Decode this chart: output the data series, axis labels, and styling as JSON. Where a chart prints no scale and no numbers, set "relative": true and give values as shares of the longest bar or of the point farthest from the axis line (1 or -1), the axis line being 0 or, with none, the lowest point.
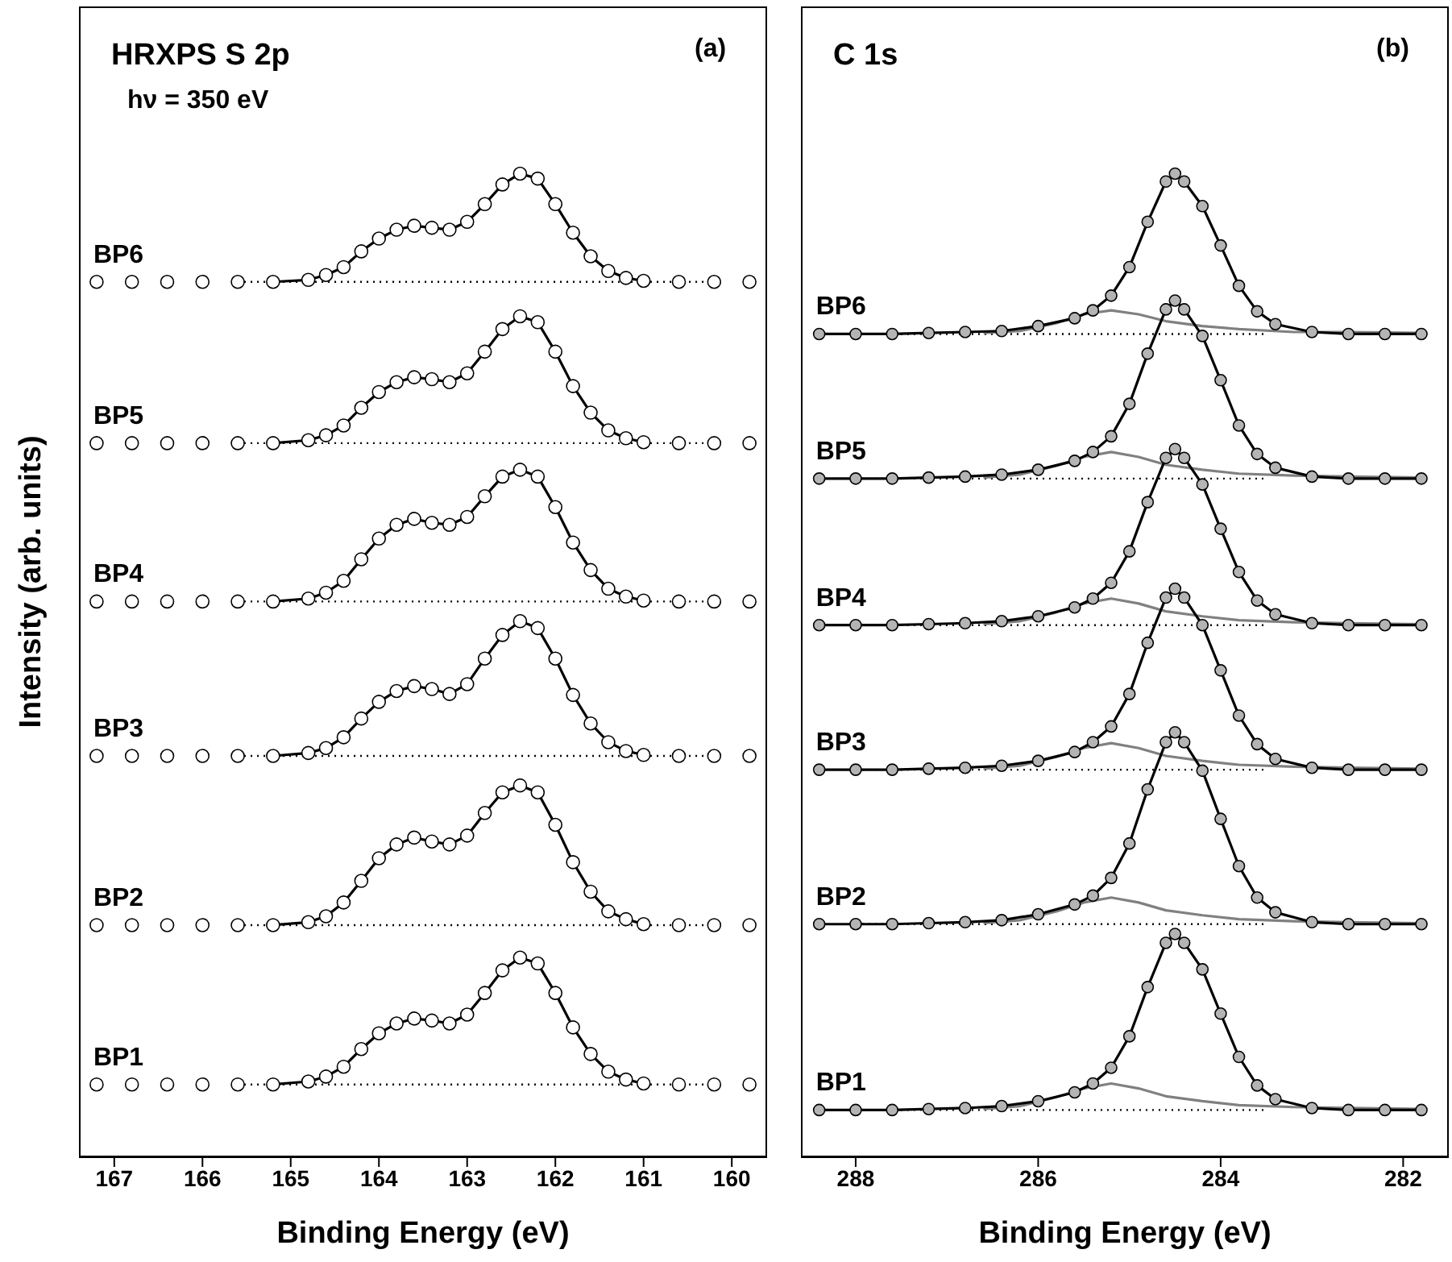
{
  "chart_data": [
    {
      "type": "scatter",
      "title": "(a)",
      "xlabel": "Binding Energy (eV)",
      "ylabel": "Intensity (arb. units)",
      "relative": true,
      "xlim": [
        167.4,
        159.6
      ],
      "xticks": [
        167,
        166,
        165,
        164,
        163,
        162,
        161,
        160
      ],
      "tick_labels": "x",
      "grid": false,
      "legend": false,
      "x": [
        167.2,
        166.8,
        166.4,
        166,
        165.6,
        165.2,
        164.8,
        164.6,
        164.4,
        164.2,
        164,
        163.8,
        163.6,
        163.4,
        163.2,
        163,
        162.8,
        162.6,
        162.4,
        162.2,
        162,
        161.8,
        161.6,
        161.4,
        161.2,
        161,
        160.6,
        160.2,
        159.8
      ],
      "annotations": [
        "HRXPS S 2p",
        "hν = 350 eV"
      ],
      "series": [
        {
          "type": "line",
          "line_style": "dotted",
          "color": "#000000",
          "x": [
            165.6,
            160.2
          ],
          "values": [
            0.89,
            0.89
          ]
        },
        {
          "type": "line",
          "line_style": "dotted",
          "color": "#000000",
          "x": [
            165.6,
            160.2
          ],
          "values": [
            0.726,
            0.726
          ]
        },
        {
          "type": "line",
          "line_style": "dotted",
          "color": "#000000",
          "x": [
            165.6,
            160.2
          ],
          "values": [
            0.565,
            0.565
          ]
        },
        {
          "type": "line",
          "line_style": "dotted",
          "color": "#000000",
          "x": [
            165.6,
            160.2
          ],
          "values": [
            0.408,
            0.408
          ]
        },
        {
          "type": "line",
          "line_style": "dotted",
          "color": "#000000",
          "x": [
            165.6,
            160.2
          ],
          "values": [
            0.236,
            0.236
          ]
        },
        {
          "type": "line",
          "line_style": "dotted",
          "color": "#000000",
          "x": [
            165.6,
            160.2
          ],
          "values": [
            0.074,
            0.074
          ]
        },
        {
          "name": "BP6",
          "marker": "circle",
          "color": "#ffffff",
          "values": [
            0.89,
            0.89,
            0.89,
            0.89,
            0.89,
            0.89,
            0.892,
            0.897,
            0.905,
            0.921,
            0.934,
            0.943,
            0.947,
            0.945,
            0.943,
            0.951,
            0.969,
            0.989,
            1.0,
            0.995,
            0.969,
            0.94,
            0.916,
            0.901,
            0.894,
            0.891,
            0.89,
            0.89,
            0.89
          ]
        },
        {
          "name": "BP5",
          "marker": "circle",
          "color": "#ffffff",
          "values": [
            0.726,
            0.726,
            0.726,
            0.726,
            0.726,
            0.726,
            0.729,
            0.734,
            0.744,
            0.762,
            0.778,
            0.788,
            0.793,
            0.791,
            0.788,
            0.797,
            0.819,
            0.842,
            0.855,
            0.849,
            0.819,
            0.784,
            0.757,
            0.739,
            0.731,
            0.727,
            0.726,
            0.726,
            0.726
          ]
        },
        {
          "name": "BP4",
          "marker": "circle",
          "color": "#ffffff",
          "values": [
            0.565,
            0.565,
            0.565,
            0.565,
            0.565,
            0.565,
            0.568,
            0.574,
            0.586,
            0.608,
            0.629,
            0.643,
            0.649,
            0.645,
            0.643,
            0.651,
            0.672,
            0.692,
            0.699,
            0.692,
            0.661,
            0.625,
            0.597,
            0.578,
            0.57,
            0.566,
            0.565,
            0.565,
            0.565
          ]
        },
        {
          "name": "BP3",
          "marker": "circle",
          "color": "#ffffff",
          "values": [
            0.408,
            0.408,
            0.408,
            0.408,
            0.408,
            0.408,
            0.411,
            0.416,
            0.427,
            0.446,
            0.463,
            0.474,
            0.479,
            0.476,
            0.471,
            0.481,
            0.507,
            0.531,
            0.545,
            0.538,
            0.507,
            0.47,
            0.441,
            0.422,
            0.413,
            0.409,
            0.408,
            0.408,
            0.408
          ]
        },
        {
          "name": "BP2",
          "marker": "circle",
          "color": "#ffffff",
          "values": [
            0.236,
            0.236,
            0.236,
            0.236,
            0.236,
            0.236,
            0.239,
            0.245,
            0.259,
            0.281,
            0.304,
            0.318,
            0.325,
            0.321,
            0.318,
            0.327,
            0.35,
            0.371,
            0.378,
            0.371,
            0.338,
            0.3,
            0.27,
            0.25,
            0.242,
            0.237,
            0.236,
            0.236,
            0.236
          ]
        },
        {
          "name": "BP1",
          "marker": "circle",
          "color": "#ffffff",
          "values": [
            0.074,
            0.074,
            0.074,
            0.074,
            0.074,
            0.074,
            0.077,
            0.082,
            0.092,
            0.11,
            0.126,
            0.136,
            0.141,
            0.139,
            0.136,
            0.145,
            0.167,
            0.19,
            0.203,
            0.197,
            0.167,
            0.132,
            0.105,
            0.087,
            0.079,
            0.075,
            0.074,
            0.074,
            0.074
          ]
        },
        {
          "type": "line",
          "line_style": "solid",
          "color": "#000000",
          "x": [
            165.2,
            164.8,
            164.6,
            164.4,
            164.2,
            164,
            163.8,
            163.6,
            163.4,
            163.2,
            163,
            162.8,
            162.6,
            162.4,
            162.2,
            162,
            161.8,
            161.6,
            161.4,
            161.2,
            161
          ],
          "values": [
            0.89,
            0.892,
            0.897,
            0.905,
            0.921,
            0.934,
            0.943,
            0.947,
            0.945,
            0.943,
            0.951,
            0.969,
            0.989,
            1.0,
            0.995,
            0.969,
            0.94,
            0.916,
            0.901,
            0.894,
            0.891
          ]
        },
        {
          "type": "line",
          "line_style": "solid",
          "color": "#000000",
          "x": [
            165.2,
            164.8,
            164.6,
            164.4,
            164.2,
            164,
            163.8,
            163.6,
            163.4,
            163.2,
            163,
            162.8,
            162.6,
            162.4,
            162.2,
            162,
            161.8,
            161.6,
            161.4,
            161.2,
            161
          ],
          "values": [
            0.726,
            0.729,
            0.734,
            0.744,
            0.762,
            0.778,
            0.788,
            0.793,
            0.791,
            0.788,
            0.797,
            0.819,
            0.842,
            0.855,
            0.849,
            0.819,
            0.784,
            0.757,
            0.739,
            0.731,
            0.727
          ]
        },
        {
          "type": "line",
          "line_style": "solid",
          "color": "#000000",
          "x": [
            165.2,
            164.8,
            164.6,
            164.4,
            164.2,
            164,
            163.8,
            163.6,
            163.4,
            163.2,
            163,
            162.8,
            162.6,
            162.4,
            162.2,
            162,
            161.8,
            161.6,
            161.4,
            161.2,
            161
          ],
          "values": [
            0.565,
            0.568,
            0.574,
            0.586,
            0.608,
            0.629,
            0.643,
            0.649,
            0.645,
            0.643,
            0.651,
            0.672,
            0.692,
            0.699,
            0.692,
            0.661,
            0.625,
            0.597,
            0.578,
            0.57,
            0.566
          ]
        },
        {
          "type": "line",
          "line_style": "solid",
          "color": "#000000",
          "x": [
            165.2,
            164.8,
            164.6,
            164.4,
            164.2,
            164,
            163.8,
            163.6,
            163.4,
            163.2,
            163,
            162.8,
            162.6,
            162.4,
            162.2,
            162,
            161.8,
            161.6,
            161.4,
            161.2,
            161
          ],
          "values": [
            0.408,
            0.411,
            0.416,
            0.427,
            0.446,
            0.463,
            0.474,
            0.479,
            0.476,
            0.471,
            0.481,
            0.507,
            0.531,
            0.545,
            0.538,
            0.507,
            0.47,
            0.441,
            0.422,
            0.413,
            0.409
          ]
        },
        {
          "type": "line",
          "line_style": "solid",
          "color": "#000000",
          "x": [
            165.2,
            164.8,
            164.6,
            164.4,
            164.2,
            164,
            163.8,
            163.6,
            163.4,
            163.2,
            163,
            162.8,
            162.6,
            162.4,
            162.2,
            162,
            161.8,
            161.6,
            161.4,
            161.2,
            161
          ],
          "values": [
            0.236,
            0.239,
            0.245,
            0.259,
            0.281,
            0.304,
            0.318,
            0.325,
            0.321,
            0.318,
            0.327,
            0.35,
            0.371,
            0.378,
            0.371,
            0.338,
            0.3,
            0.27,
            0.25,
            0.242,
            0.237
          ]
        },
        {
          "type": "line",
          "line_style": "solid",
          "color": "#000000",
          "x": [
            165.2,
            164.8,
            164.6,
            164.4,
            164.2,
            164,
            163.8,
            163.6,
            163.4,
            163.2,
            163,
            162.8,
            162.6,
            162.4,
            162.2,
            162,
            161.8,
            161.6,
            161.4,
            161.2,
            161
          ],
          "values": [
            0.074,
            0.077,
            0.082,
            0.092,
            0.11,
            0.126,
            0.136,
            0.141,
            0.139,
            0.136,
            0.145,
            0.167,
            0.19,
            0.203,
            0.197,
            0.167,
            0.132,
            0.105,
            0.087,
            0.079,
            0.075
          ]
        }
      ]
    },
    {
      "type": "scatter",
      "title": "(b)",
      "xlabel": "Binding Energy (eV)",
      "relative": true,
      "xlim": [
        288.6,
        281.5
      ],
      "xticks": [
        288,
        286,
        284,
        282
      ],
      "tick_labels": "x",
      "grid": false,
      "legend": false,
      "x": [
        288.4,
        288,
        287.6,
        287.2,
        286.8,
        286.4,
        286,
        285.6,
        285.4,
        285.2,
        285,
        284.8,
        284.6,
        284.5,
        284.4,
        284.2,
        284,
        283.8,
        283.6,
        283.4,
        283,
        282.6,
        282.2,
        281.8
      ],
      "annotations": [
        "C 1s"
      ],
      "series": [
        {
          "type": "line",
          "line_style": "dotted",
          "color": "#000000",
          "x": [
            288,
            283.5
          ],
          "values": [
            0.837,
            0.837
          ]
        },
        {
          "type": "line",
          "line_style": "dotted",
          "color": "#000000",
          "x": [
            288,
            283.5
          ],
          "values": [
            0.69,
            0.69
          ]
        },
        {
          "type": "line",
          "line_style": "dotted",
          "color": "#000000",
          "x": [
            288,
            283.5
          ],
          "values": [
            0.541,
            0.541
          ]
        },
        {
          "type": "line",
          "line_style": "dotted",
          "color": "#000000",
          "x": [
            288,
            283.5
          ],
          "values": [
            0.394,
            0.394
          ]
        },
        {
          "type": "line",
          "line_style": "dotted",
          "color": "#000000",
          "x": [
            288,
            283.5
          ],
          "values": [
            0.237,
            0.237
          ]
        },
        {
          "type": "line",
          "line_style": "dotted",
          "color": "#000000",
          "x": [
            288,
            283.5
          ],
          "values": [
            0.048,
            0.048
          ]
        },
        {
          "name": "BP6",
          "marker": "circle",
          "color": "#b4b4b4",
          "values": [
            0.837,
            0.837,
            0.837,
            0.838,
            0.839,
            0.84,
            0.845,
            0.853,
            0.861,
            0.876,
            0.905,
            0.951,
            0.992,
            1.0,
            0.992,
            0.967,
            0.927,
            0.886,
            0.86,
            0.847,
            0.839,
            0.837,
            0.837,
            0.837
          ]
        },
        {
          "name": "BP5",
          "marker": "circle",
          "color": "#b4b4b4",
          "values": [
            0.69,
            0.69,
            0.69,
            0.691,
            0.692,
            0.694,
            0.699,
            0.708,
            0.717,
            0.733,
            0.766,
            0.817,
            0.862,
            0.871,
            0.862,
            0.835,
            0.79,
            0.744,
            0.715,
            0.701,
            0.692,
            0.69,
            0.69,
            0.69
          ]
        },
        {
          "name": "BP4",
          "marker": "circle",
          "color": "#b4b4b4",
          "values": [
            0.541,
            0.541,
            0.541,
            0.542,
            0.543,
            0.545,
            0.55,
            0.559,
            0.568,
            0.584,
            0.616,
            0.666,
            0.711,
            0.72,
            0.711,
            0.684,
            0.639,
            0.595,
            0.566,
            0.552,
            0.543,
            0.541,
            0.541,
            0.541
          ]
        },
        {
          "name": "BP3",
          "marker": "circle",
          "color": "#b4b4b4",
          "values": [
            0.394,
            0.394,
            0.394,
            0.395,
            0.396,
            0.398,
            0.403,
            0.412,
            0.422,
            0.438,
            0.471,
            0.523,
            0.569,
            0.578,
            0.569,
            0.541,
            0.495,
            0.449,
            0.42,
            0.405,
            0.396,
            0.394,
            0.394,
            0.394
          ]
        },
        {
          "name": "BP2",
          "marker": "circle",
          "color": "#b4b4b4",
          "values": [
            0.237,
            0.237,
            0.237,
            0.238,
            0.239,
            0.241,
            0.247,
            0.257,
            0.266,
            0.284,
            0.319,
            0.374,
            0.422,
            0.432,
            0.422,
            0.393,
            0.344,
            0.296,
            0.264,
            0.249,
            0.239,
            0.237,
            0.237,
            0.237
          ]
        },
        {
          "name": "BP1",
          "marker": "circle",
          "color": "#b4b4b4",
          "values": [
            0.048,
            0.048,
            0.048,
            0.049,
            0.05,
            0.052,
            0.057,
            0.066,
            0.075,
            0.091,
            0.123,
            0.173,
            0.218,
            0.227,
            0.218,
            0.191,
            0.146,
            0.102,
            0.073,
            0.059,
            0.05,
            0.048,
            0.048,
            0.048
          ]
        },
        {
          "type": "line",
          "line_style": "solid",
          "color": "#808080",
          "x": [
            286.6,
            286.2,
            285.8,
            285.5,
            285.2,
            284.9,
            284.6,
            284.2,
            283.8,
            283.2,
            282.6,
            281.8
          ],
          "values": [
            0.838,
            0.84,
            0.848,
            0.857,
            0.861,
            0.857,
            0.85,
            0.845,
            0.842,
            0.839,
            0.839,
            0.838
          ]
        },
        {
          "type": "line",
          "line_style": "solid",
          "color": "#808080",
          "x": [
            286.6,
            286.2,
            285.8,
            285.5,
            285.2,
            284.9,
            284.6,
            284.2,
            283.8,
            283.2,
            282.6,
            281.8
          ],
          "values": [
            0.691,
            0.694,
            0.703,
            0.712,
            0.717,
            0.712,
            0.704,
            0.699,
            0.695,
            0.693,
            0.692,
            0.691
          ]
        },
        {
          "type": "line",
          "line_style": "solid",
          "color": "#808080",
          "x": [
            286.6,
            286.2,
            285.8,
            285.5,
            285.2,
            284.9,
            284.6,
            284.2,
            283.8,
            283.2,
            282.6,
            281.8
          ],
          "values": [
            0.542,
            0.545,
            0.554,
            0.563,
            0.568,
            0.563,
            0.555,
            0.55,
            0.546,
            0.544,
            0.543,
            0.542
          ]
        },
        {
          "type": "line",
          "line_style": "solid",
          "color": "#808080",
          "x": [
            286.6,
            286.2,
            285.8,
            285.5,
            285.2,
            284.9,
            284.6,
            284.2,
            283.8,
            283.2,
            282.6,
            281.8
          ],
          "values": [
            0.395,
            0.398,
            0.407,
            0.416,
            0.421,
            0.416,
            0.408,
            0.403,
            0.399,
            0.397,
            0.396,
            0.395
          ]
        },
        {
          "type": "line",
          "line_style": "solid",
          "color": "#808080",
          "x": [
            286.6,
            286.2,
            285.8,
            285.5,
            285.2,
            284.9,
            284.6,
            284.2,
            283.8,
            283.2,
            282.6,
            281.8
          ],
          "values": [
            0.238,
            0.241,
            0.25,
            0.259,
            0.264,
            0.259,
            0.251,
            0.246,
            0.242,
            0.24,
            0.239,
            0.238
          ]
        },
        {
          "type": "line",
          "line_style": "solid",
          "color": "#808080",
          "x": [
            286.6,
            286.2,
            285.8,
            285.5,
            285.2,
            284.9,
            284.6,
            284.2,
            283.8,
            283.2,
            282.6,
            281.8
          ],
          "values": [
            0.049,
            0.052,
            0.061,
            0.07,
            0.075,
            0.07,
            0.062,
            0.057,
            0.053,
            0.051,
            0.05,
            0.049
          ]
        },
        {
          "type": "line",
          "line_style": "solid",
          "color": "#000000",
          "values": [
            0.837,
            0.837,
            0.837,
            0.838,
            0.839,
            0.84,
            0.845,
            0.853,
            0.861,
            0.876,
            0.905,
            0.951,
            0.992,
            1.0,
            0.992,
            0.967,
            0.927,
            0.886,
            0.86,
            0.847,
            0.839,
            0.837,
            0.837,
            0.837
          ]
        },
        {
          "type": "line",
          "line_style": "solid",
          "color": "#000000",
          "values": [
            0.69,
            0.69,
            0.69,
            0.691,
            0.692,
            0.694,
            0.699,
            0.708,
            0.717,
            0.733,
            0.766,
            0.817,
            0.862,
            0.871,
            0.862,
            0.835,
            0.79,
            0.744,
            0.715,
            0.701,
            0.692,
            0.69,
            0.69,
            0.69
          ]
        },
        {
          "type": "line",
          "line_style": "solid",
          "color": "#000000",
          "values": [
            0.541,
            0.541,
            0.541,
            0.542,
            0.543,
            0.545,
            0.55,
            0.559,
            0.568,
            0.584,
            0.616,
            0.666,
            0.711,
            0.72,
            0.711,
            0.684,
            0.639,
            0.595,
            0.566,
            0.552,
            0.543,
            0.541,
            0.541,
            0.541
          ]
        },
        {
          "type": "line",
          "line_style": "solid",
          "color": "#000000",
          "values": [
            0.394,
            0.394,
            0.394,
            0.395,
            0.396,
            0.398,
            0.403,
            0.412,
            0.422,
            0.438,
            0.471,
            0.523,
            0.569,
            0.578,
            0.569,
            0.541,
            0.495,
            0.449,
            0.42,
            0.405,
            0.396,
            0.394,
            0.394,
            0.394
          ]
        },
        {
          "type": "line",
          "line_style": "solid",
          "color": "#000000",
          "values": [
            0.237,
            0.237,
            0.237,
            0.238,
            0.239,
            0.241,
            0.247,
            0.257,
            0.266,
            0.284,
            0.319,
            0.374,
            0.422,
            0.432,
            0.422,
            0.393,
            0.344,
            0.296,
            0.264,
            0.249,
            0.239,
            0.237,
            0.237,
            0.237
          ]
        },
        {
          "type": "line",
          "line_style": "solid",
          "color": "#000000",
          "values": [
            0.048,
            0.048,
            0.048,
            0.049,
            0.05,
            0.052,
            0.057,
            0.066,
            0.075,
            0.091,
            0.123,
            0.173,
            0.218,
            0.227,
            0.218,
            0.191,
            0.146,
            0.102,
            0.073,
            0.059,
            0.05,
            0.048,
            0.048,
            0.048
          ]
        }
      ]
    }
  ]
}
